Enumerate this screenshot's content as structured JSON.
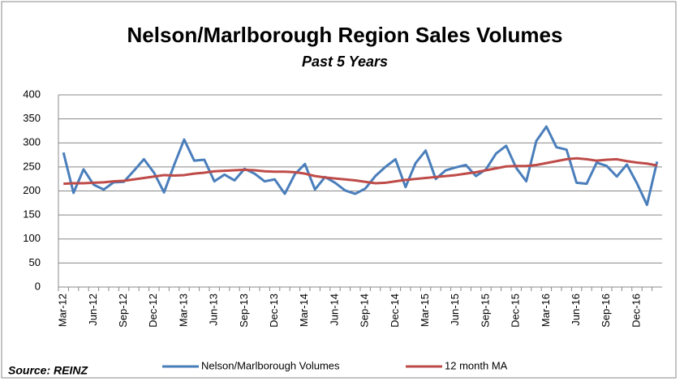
{
  "chart_data": {
    "type": "line",
    "title": "Nelson/Marlborough Region Sales Volumes",
    "subtitle": "Past 5 Years",
    "source": "Source: REINZ",
    "categories": [
      "Mar-12",
      null,
      null,
      "Jun-12",
      null,
      null,
      "Sep-12",
      null,
      null,
      "Dec-12",
      null,
      null,
      "Mar-13",
      null,
      null,
      "Jun-13",
      null,
      null,
      "Sep-13",
      null,
      null,
      "Dec-13",
      null,
      null,
      "Mar-14",
      null,
      null,
      "Jun-14",
      null,
      null,
      "Sep-14",
      null,
      null,
      "Dec-14",
      null,
      null,
      "Mar-15",
      null,
      null,
      "Jun-15",
      null,
      null,
      "Sep-15",
      null,
      null,
      "Dec-15",
      null,
      null,
      "Mar-16",
      null,
      null,
      "Jun-16",
      null,
      null,
      "Sep-16",
      null,
      null,
      "Dec-16",
      null,
      null
    ],
    "series": [
      {
        "name": "Nelson/Marlborough Volumes",
        "color": "#4a7ebb",
        "values": [
          280,
          196,
          245,
          213,
          203,
          218,
          219,
          242,
          266,
          238,
          197,
          254,
          307,
          263,
          265,
          220,
          234,
          222,
          246,
          236,
          220,
          224,
          194,
          235,
          256,
          203,
          229,
          217,
          201,
          194,
          205,
          231,
          250,
          266,
          208,
          258,
          284,
          225,
          243,
          249,
          254,
          231,
          245,
          278,
          294,
          248,
          220,
          304,
          334,
          291,
          286,
          217,
          215,
          259,
          252,
          230,
          255,
          216,
          171,
          261
        ]
      },
      {
        "name": "12 month MA",
        "color": "#be4b48",
        "values": [
          215,
          216,
          216,
          217,
          218,
          220,
          221,
          224,
          227,
          230,
          233,
          232,
          233,
          236,
          238,
          241,
          242,
          243,
          244,
          243,
          241,
          240,
          240,
          239,
          236,
          231,
          228,
          226,
          224,
          222,
          219,
          216,
          217,
          220,
          223,
          225,
          227,
          229,
          231,
          233,
          236,
          239,
          243,
          247,
          251,
          252,
          252,
          254,
          258,
          262,
          266,
          268,
          266,
          263,
          265,
          266,
          262,
          259,
          257,
          253
        ]
      }
    ],
    "ylim": [
      0,
      400
    ],
    "yticks": [
      0,
      50,
      100,
      150,
      200,
      250,
      300,
      350,
      400
    ],
    "grid": true,
    "legend": "bottom"
  }
}
